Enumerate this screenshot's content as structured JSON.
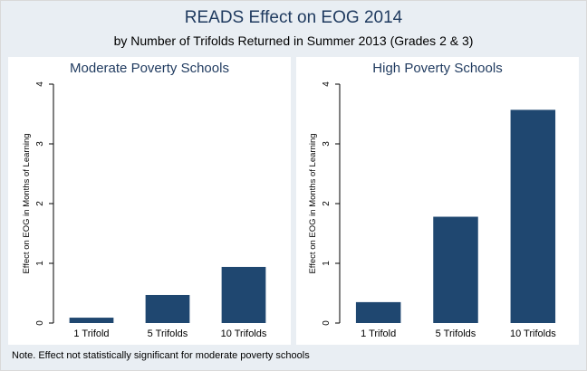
{
  "title": "READS Effect on EOG 2014",
  "subtitle": "by Number of Trifolds Returned in Summer 2013 (Grades 2 & 3)",
  "note": "Note. Effect not statistically significant for moderate poverty schools",
  "colors": {
    "bar": "#1f4770",
    "panel_bg": "#ffffff",
    "figure_bg": "#e9eef3",
    "title": "#1f3a5f"
  },
  "chart_data": [
    {
      "type": "bar",
      "title": "Moderate Poverty Schools",
      "ylabel": "Effect on EOG in Months of Learning",
      "xlabel": "",
      "categories": [
        "1 Trifold",
        "5 Trifolds",
        "10 Trifolds"
      ],
      "values": [
        0.09,
        0.47,
        0.94
      ],
      "ylim": [
        0,
        4
      ],
      "yticks": [
        "0",
        "1",
        "2",
        "3",
        "4"
      ],
      "grid": false
    },
    {
      "type": "bar",
      "title": "High Poverty Schools",
      "ylabel": "Effect on EOG in Months of Learning",
      "xlabel": "",
      "categories": [
        "1 Trifold",
        "5 Trifolds",
        "10 Trifolds"
      ],
      "values": [
        0.35,
        1.78,
        3.57
      ],
      "ylim": [
        0,
        4
      ],
      "yticks": [
        "0",
        "1",
        "2",
        "3",
        "4"
      ],
      "grid": false
    }
  ]
}
